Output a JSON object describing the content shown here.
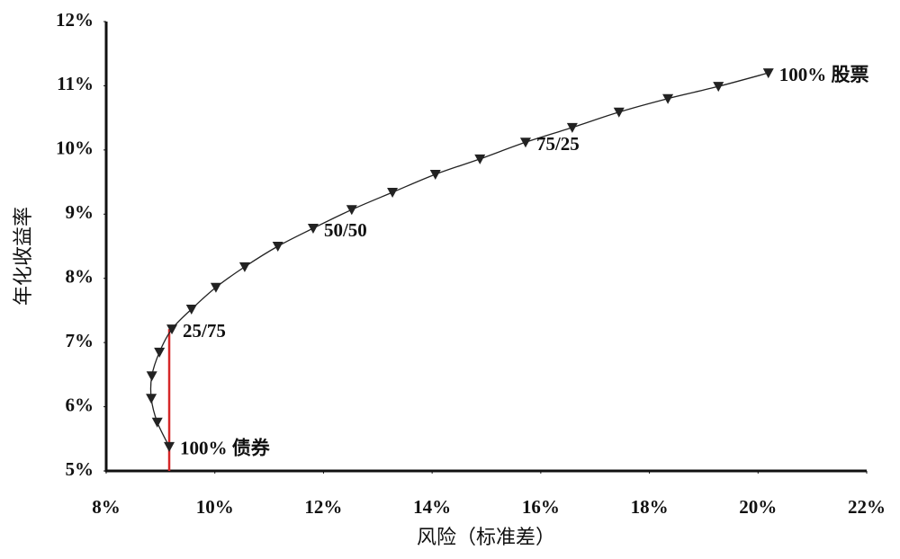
{
  "chart_data": {
    "type": "line",
    "x_label": "风险（标准差）",
    "y_label": "年化收益率",
    "x": [
      9.16,
      8.94,
      8.83,
      8.84,
      8.98,
      9.21,
      9.57,
      10.02,
      10.55,
      11.16,
      11.81,
      12.52,
      13.27,
      14.06,
      14.88,
      15.72,
      16.58,
      17.44,
      18.34,
      19.27,
      20.19
    ],
    "values": [
      5.38,
      5.76,
      6.13,
      6.48,
      6.85,
      7.21,
      7.52,
      7.86,
      8.18,
      8.5,
      8.78,
      9.07,
      9.34,
      9.62,
      9.86,
      10.12,
      10.35,
      10.59,
      10.8,
      10.99,
      11.2
    ],
    "point_labels": [
      "100% 债券",
      null,
      null,
      null,
      null,
      "25/75",
      null,
      null,
      null,
      null,
      "50/50",
      null,
      null,
      null,
      null,
      "75/25",
      null,
      null,
      null,
      null,
      "100% 股票"
    ],
    "color": "#222222",
    "xlim": [
      8,
      22
    ],
    "ylim": [
      5,
      12
    ],
    "xticks": [
      {
        "value": 8,
        "label": "8%"
      },
      {
        "value": 10,
        "label": "10%"
      },
      {
        "value": 12,
        "label": "12%"
      },
      {
        "value": 14,
        "label": "14%"
      },
      {
        "value": 16,
        "label": "16%"
      },
      {
        "value": 18,
        "label": "18%"
      },
      {
        "value": 20,
        "label": "20%"
      },
      {
        "value": 22,
        "label": "22%"
      }
    ],
    "yticks": [
      {
        "value": 5,
        "label": "5%"
      },
      {
        "value": 6,
        "label": "6%"
      },
      {
        "value": 7,
        "label": "7%"
      },
      {
        "value": 8,
        "label": "8%"
      },
      {
        "value": 9,
        "label": "9%"
      },
      {
        "value": 10,
        "label": "10%"
      },
      {
        "value": 11,
        "label": "11%"
      },
      {
        "value": 12,
        "label": "12%"
      }
    ],
    "reference_line": {
      "x": 9.16,
      "y_from": 5,
      "y_to": 7.21,
      "color": "#d62728"
    },
    "grid": false
  }
}
